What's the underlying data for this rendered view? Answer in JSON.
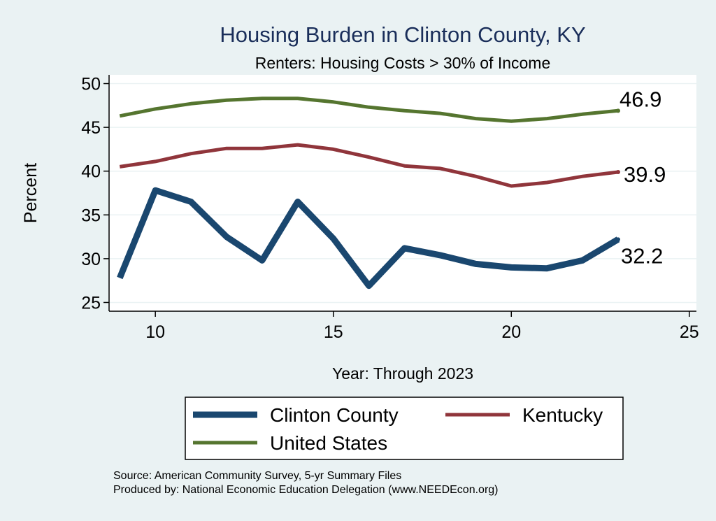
{
  "chart_data": {
    "type": "line",
    "title": "Housing Burden in Clinton County, KY",
    "subtitle": "Renters: Housing Costs > 30% of Income",
    "xlabel": "Year: Through 2023",
    "ylabel": "Percent",
    "xlim": [
      8.7,
      25.2
    ],
    "ylim": [
      24,
      51
    ],
    "x_ticks": [
      "10",
      "15",
      "20",
      "25"
    ],
    "y_ticks": [
      "25",
      "30",
      "35",
      "40",
      "45",
      "50"
    ],
    "grid": true,
    "x": [
      9,
      10,
      11,
      12,
      13,
      14,
      15,
      16,
      17,
      18,
      19,
      20,
      21,
      22,
      23
    ],
    "series": [
      {
        "name": "Clinton County",
        "color": "#1a476f",
        "values": [
          27.8,
          37.8,
          36.5,
          32.5,
          29.8,
          36.5,
          32.3,
          26.9,
          31.2,
          30.4,
          29.4,
          29.0,
          28.9,
          29.8,
          32.2
        ],
        "end_label": "32.2"
      },
      {
        "name": "Kentucky",
        "color": "#90353b",
        "values": [
          40.5,
          41.1,
          42.0,
          42.6,
          42.6,
          43.0,
          42.5,
          41.6,
          40.6,
          40.3,
          39.4,
          38.3,
          38.7,
          39.4,
          39.9
        ],
        "end_label": "39.9"
      },
      {
        "name": "United States",
        "color": "#55752f",
        "values": [
          46.3,
          47.1,
          47.7,
          48.1,
          48.3,
          48.3,
          47.9,
          47.3,
          46.9,
          46.6,
          46.0,
          45.7,
          46.0,
          46.5,
          46.9
        ],
        "end_label": "46.9"
      }
    ],
    "legend": {
      "position": "bottom",
      "entries": [
        "Clinton County",
        "Kentucky",
        "United States"
      ]
    }
  },
  "footer": {
    "source": "Source: American Community Survey, 5-yr Summary Files",
    "produced_by": "Produced by: National Economic Education Delegation (www.NEEDEcon.org)"
  }
}
